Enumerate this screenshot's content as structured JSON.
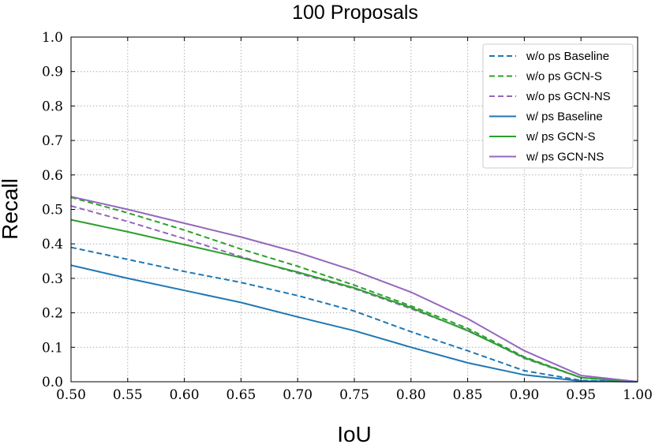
{
  "chart_data": {
    "type": "line",
    "title": "100 Proposals",
    "xlabel": "IoU",
    "ylabel": "Recall",
    "xlim": [
      0.5,
      1.0
    ],
    "ylim": [
      0.0,
      1.0
    ],
    "x_ticks": [
      "0.50",
      "0.55",
      "0.60",
      "0.65",
      "0.70",
      "0.75",
      "0.80",
      "0.85",
      "0.90",
      "0.95",
      "1.00"
    ],
    "y_ticks": [
      "0.0",
      "0.1",
      "0.2",
      "0.3",
      "0.4",
      "0.5",
      "0.6",
      "0.7",
      "0.8",
      "0.9",
      "1.0"
    ],
    "grid": true,
    "legend_position": "top-right",
    "x": [
      0.5,
      0.55,
      0.6,
      0.65,
      0.7,
      0.75,
      0.8,
      0.85,
      0.9,
      0.95,
      1.0
    ],
    "series": [
      {
        "name": "w/o ps Baseline",
        "color": "#1f77b4",
        "style": "dashed",
        "values": [
          0.39,
          0.355,
          0.32,
          0.288,
          0.25,
          0.205,
          0.145,
          0.09,
          0.032,
          0.004,
          0.0
        ]
      },
      {
        "name": "w/o ps GCN-S",
        "color": "#2ca02c",
        "style": "dashed",
        "values": [
          0.535,
          0.49,
          0.44,
          0.385,
          0.335,
          0.28,
          0.22,
          0.155,
          0.072,
          0.012,
          0.0
        ]
      },
      {
        "name": "w/o ps GCN-NS",
        "color": "#9467bd",
        "style": "dashed",
        "values": [
          0.51,
          0.465,
          0.415,
          0.363,
          0.315,
          0.27,
          0.212,
          0.15,
          0.068,
          0.012,
          0.0
        ]
      },
      {
        "name": "w/ ps Baseline",
        "color": "#1f77b4",
        "style": "solid",
        "values": [
          0.338,
          0.3,
          0.265,
          0.23,
          0.188,
          0.148,
          0.1,
          0.055,
          0.02,
          0.002,
          0.0
        ]
      },
      {
        "name": "w/ ps GCN-S",
        "color": "#2ca02c",
        "style": "solid",
        "values": [
          0.47,
          0.435,
          0.398,
          0.36,
          0.318,
          0.272,
          0.215,
          0.148,
          0.07,
          0.012,
          0.0
        ]
      },
      {
        "name": "w/ ps GCN-NS",
        "color": "#9467bd",
        "style": "solid",
        "values": [
          0.537,
          0.5,
          0.46,
          0.42,
          0.375,
          0.322,
          0.26,
          0.183,
          0.09,
          0.018,
          0.0
        ]
      }
    ]
  }
}
